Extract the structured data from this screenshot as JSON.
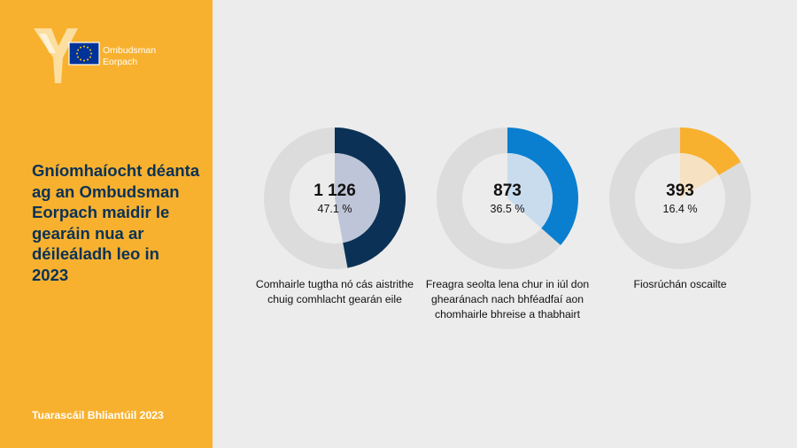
{
  "logo": {
    "line1": "Ombudsman",
    "line2": "Eorpach"
  },
  "sidebar": {
    "title": "Gníomhaíocht déanta ag an Ombudsman Eorpach maidir le gearáin nua ar déileáladh leo in 2023",
    "footer": "Tuarascáil Bhliantúil 2023"
  },
  "colors": {
    "sidebar_bg": "#f8b12f",
    "title_text": "#0b3256",
    "ring_bg": "#dcdcdc",
    "inner_bg": "#ececec"
  },
  "chart_data": {
    "type": "pie",
    "title": "Gníomhaíocht déanta ag an Ombudsman Eorpach maidir le gearáin nua ar déileáladh leo in 2023",
    "items": [
      {
        "value_label": "1 126",
        "value": 1126,
        "percent": 47.1,
        "percent_label": "47.1 %",
        "label": "Comhairle tugtha nó cás aistrithe chuig comhlacht gearán eile",
        "color": "#0b3256",
        "inner_color": "#bfc5d8"
      },
      {
        "value_label": "873",
        "value": 873,
        "percent": 36.5,
        "percent_label": "36.5 %",
        "label": "Freagra seolta lena chur in iúl don ghearánach nach bhféadfaí aon chomhairle bhreise a thabhairt",
        "color": "#0a7fd0",
        "inner_color": "#c9dcee"
      },
      {
        "value_label": "393",
        "value": 393,
        "percent": 16.4,
        "percent_label": "16.4 %",
        "label": "Fiosrúchán oscailte",
        "color": "#f8b12f",
        "inner_color": "#f6e2c2"
      }
    ]
  }
}
